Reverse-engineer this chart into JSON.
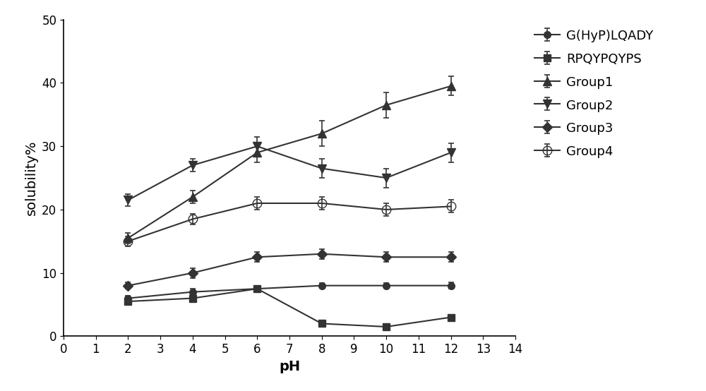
{
  "x": [
    2,
    4,
    6,
    8,
    10,
    12
  ],
  "series": [
    {
      "label": "G(HyP)LQADY",
      "y": [
        6.0,
        7.0,
        7.5,
        8.0,
        8.0,
        8.0
      ],
      "yerr": [
        0.4,
        0.5,
        0.4,
        0.4,
        0.4,
        0.5
      ],
      "marker": "o",
      "color": "#333333",
      "fillstyle": "full",
      "markersize": 7
    },
    {
      "label": "RPQYPQYPS",
      "y": [
        5.5,
        6.0,
        7.5,
        2.0,
        1.5,
        3.0
      ],
      "yerr": [
        0.4,
        0.5,
        0.5,
        0.3,
        0.3,
        0.4
      ],
      "marker": "s",
      "color": "#333333",
      "fillstyle": "full",
      "markersize": 7
    },
    {
      "label": "Group1",
      "y": [
        15.5,
        22.0,
        29.0,
        32.0,
        36.5,
        39.5
      ],
      "yerr": [
        0.8,
        1.0,
        1.5,
        2.0,
        2.0,
        1.5
      ],
      "marker": "^",
      "color": "#333333",
      "fillstyle": "full",
      "markersize": 9
    },
    {
      "label": "Group2",
      "y": [
        21.5,
        27.0,
        30.0,
        26.5,
        25.0,
        29.0
      ],
      "yerr": [
        1.0,
        1.0,
        1.5,
        1.5,
        1.5,
        1.5
      ],
      "marker": "v",
      "color": "#333333",
      "fillstyle": "full",
      "markersize": 9
    },
    {
      "label": "Group3",
      "y": [
        8.0,
        10.0,
        12.5,
        13.0,
        12.5,
        12.5
      ],
      "yerr": [
        0.5,
        0.8,
        0.8,
        0.8,
        0.8,
        0.8
      ],
      "marker": "D",
      "color": "#333333",
      "fillstyle": "full",
      "markersize": 7
    },
    {
      "label": "Group4",
      "y": [
        15.0,
        18.5,
        21.0,
        21.0,
        20.0,
        20.5
      ],
      "yerr": [
        0.8,
        0.8,
        1.0,
        1.0,
        1.0,
        1.0
      ],
      "marker": "o",
      "color": "#333333",
      "fillstyle": "none",
      "markersize": 9
    }
  ],
  "xlabel": "pH",
  "ylabel": "solubility%",
  "xlim": [
    0,
    14
  ],
  "ylim": [
    0,
    50
  ],
  "xticks": [
    0,
    1,
    2,
    3,
    4,
    5,
    6,
    7,
    8,
    9,
    10,
    11,
    12,
    13,
    14
  ],
  "yticks": [
    0,
    10,
    20,
    30,
    40,
    50
  ],
  "background_color": "#ffffff",
  "label_fontsize": 14,
  "tick_fontsize": 12,
  "legend_fontsize": 13
}
